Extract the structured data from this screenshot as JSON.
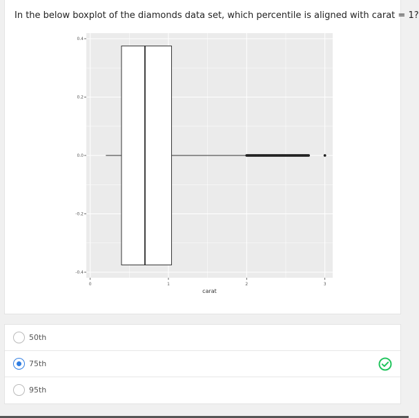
{
  "question": {
    "text": "In the below boxplot of the diamonds data set, which percentile is aligned with carat = 1?"
  },
  "colors": {
    "panel_bg": "#ebebeb",
    "grid": "#ffffff",
    "box_fill": "#ffffff",
    "box_stroke": "#333333",
    "selected": "#2f7de1",
    "correct": "#21c45d"
  },
  "chart_data": {
    "type": "boxplot",
    "orientation": "horizontal",
    "xlabel": "carat",
    "ylabel": "",
    "xlim": [
      -0.05,
      3.1
    ],
    "ylim": [
      -0.4,
      0.4
    ],
    "x_ticks": [
      "0",
      "1",
      "2",
      "3"
    ],
    "y_ticks": [
      "0.4",
      "0.2",
      "0.0",
      "-0.2",
      "-0.4"
    ],
    "grid": true,
    "box": {
      "min": 0.2,
      "q1": 0.4,
      "median": 0.7,
      "q3": 1.04,
      "whisker_high": 2.0,
      "y_center": 0.0,
      "half_height": 0.375
    },
    "outliers_range": [
      2.0,
      2.8
    ],
    "outlier_max": 3.0
  },
  "options": [
    {
      "label": "50th",
      "selected": false,
      "correct": false
    },
    {
      "label": "75th",
      "selected": true,
      "correct": true
    },
    {
      "label": "95th",
      "selected": false,
      "correct": false
    }
  ],
  "icons": {
    "correct": "check-circle-icon"
  }
}
